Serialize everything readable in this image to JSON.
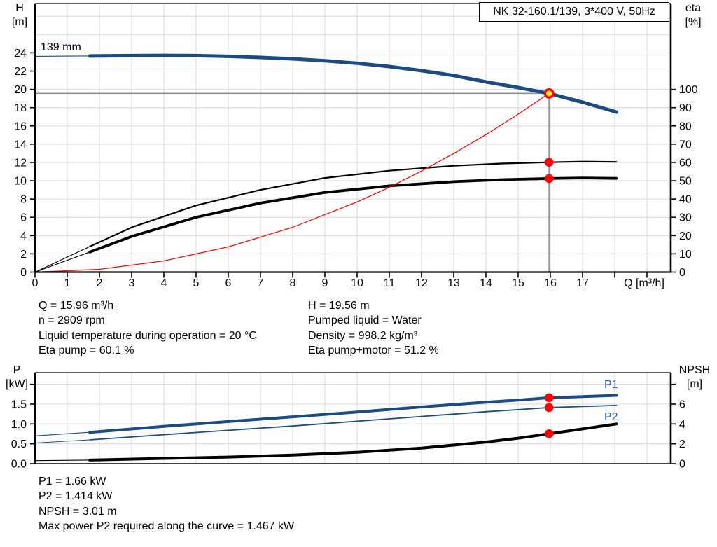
{
  "title": "NK 32-160.1/139, 3*400 V, 50Hz",
  "axis_labels": {
    "h": [
      "H",
      "[m]"
    ],
    "eta": [
      "eta",
      "[%]"
    ],
    "q": "Q [m³/h]",
    "p": [
      "P",
      "[kW]"
    ],
    "npsh": [
      "NPSH",
      "[m]"
    ]
  },
  "curve_labels": {
    "impeller": "139 mm",
    "p1": "P1",
    "p2": "P2"
  },
  "info_top": {
    "left": [
      "Q = 15.96 m³/h",
      "n = 2909 rpm",
      "Liquid temperature during operation = 20 °C",
      "Eta pump = 60.1 %"
    ],
    "right": [
      "H = 19.56 m",
      "Pumped liquid = Water",
      "Density = 998.2 kg/m³",
      "Eta pump+motor = 51.2 %"
    ]
  },
  "info_bottom": [
    "P1 = 1.66 kW",
    "P2 = 1.414 kW",
    "NPSH = 3.01 m",
    "Max power P2 required along the curve = 1.467 kW"
  ],
  "colors": {
    "curve_blue": "#1c4b82",
    "label_blue": "#2e5fa3",
    "red": "#ff0000",
    "yellow": "#ffe600",
    "grid": "#d8d8d8",
    "guide": "#8f8f8f",
    "axis": "#000000"
  },
  "chart_data": [
    {
      "type": "line",
      "name": "qh-eta-chart",
      "title": "NK 32-160.1/139, 3*400 V, 50Hz",
      "x_axis": {
        "label": "Q [m³/h]",
        "min": 0,
        "max": 19.74,
        "tick_labels": [
          "0",
          "1",
          "2",
          "3",
          "4",
          "5",
          "6",
          "7",
          "8",
          "9",
          "10",
          "11",
          "12",
          "13",
          "14",
          "15",
          "16",
          "17"
        ],
        "ticks": [
          0,
          1,
          2,
          3,
          4,
          5,
          6,
          7,
          8,
          9,
          10,
          11,
          12,
          13,
          14,
          15,
          16,
          17,
          18,
          19
        ]
      },
      "x_gridlines": [
        1,
        2,
        3,
        4,
        5,
        6,
        7,
        8,
        9,
        10,
        11,
        12,
        13,
        14,
        15,
        16,
        17,
        18,
        19
      ],
      "y_left": {
        "label": "H [m]",
        "min": 0,
        "max": 29.4,
        "tick_values": [
          0,
          2,
          4,
          6,
          8,
          10,
          12,
          14,
          16,
          18,
          20,
          22,
          24
        ],
        "tick_labels": [
          "0",
          "2",
          "4",
          "6",
          "8",
          "10",
          "12",
          "14",
          "16",
          "18",
          "20",
          "22",
          "24"
        ],
        "extra_ticks": []
      },
      "y_gridlines": [
        2,
        4,
        6,
        8,
        10,
        12,
        14,
        16,
        18,
        20,
        22,
        24,
        26,
        28
      ],
      "y_right": {
        "label": "eta [%]",
        "min": 0,
        "max": 147,
        "tick_values": [
          0,
          10,
          20,
          30,
          40,
          50,
          60,
          70,
          80,
          90,
          100
        ],
        "tick_labels": [
          "0",
          "10",
          "20",
          "30",
          "40",
          "50",
          "60",
          "70",
          "80",
          "90",
          "100"
        ],
        "extra_ticks": []
      },
      "series": [
        {
          "name": "head-curve-139mm",
          "label": "139 mm",
          "axis": "left",
          "color": "curve_blue",
          "width": 5,
          "thin_until": 1.7,
          "q": [
            0,
            1,
            1.7,
            3,
            4,
            5,
            6,
            7,
            8,
            9,
            10,
            11,
            12,
            13,
            14,
            15,
            15.96,
            17,
            18.05
          ],
          "v": [
            23.62,
            23.64,
            23.66,
            23.7,
            23.72,
            23.7,
            23.62,
            23.5,
            23.34,
            23.14,
            22.86,
            22.5,
            22.05,
            21.52,
            20.82,
            20.2,
            19.56,
            18.6,
            17.52
          ]
        },
        {
          "name": "eta-pump-curve",
          "axis": "right",
          "color": "axis",
          "width": 2.2,
          "thin_until": 1.7,
          "q": [
            0,
            1.7,
            3,
            5,
            7,
            9,
            11,
            13,
            14.5,
            15.96,
            17,
            18.05
          ],
          "v": [
            0,
            14,
            24.5,
            36.5,
            45,
            51.5,
            55.5,
            58.2,
            59.4,
            60.1,
            60.5,
            60.3
          ]
        },
        {
          "name": "eta-pump-motor-curve",
          "axis": "right",
          "color": "axis",
          "width": 3.8,
          "thin_until": 1.7,
          "q": [
            0,
            1.7,
            3,
            5,
            7,
            9,
            11,
            13,
            14.5,
            15.96,
            17,
            18.05
          ],
          "v": [
            0,
            11,
            19.5,
            30,
            37.8,
            43.6,
            47.2,
            49.5,
            50.6,
            51.2,
            51.5,
            51.3
          ]
        },
        {
          "name": "system-curve",
          "axis": "left",
          "color": "red",
          "width": 1.2,
          "q": [
            0,
            2,
            4,
            6,
            8,
            10,
            11,
            12,
            13,
            14,
            15,
            15.96
          ],
          "v": [
            0,
            0.31,
            1.23,
            2.76,
            4.91,
            7.68,
            9.29,
            11.06,
            12.98,
            15.05,
            17.28,
            19.56
          ]
        }
      ],
      "duty_point": {
        "q": 15.96,
        "h": 19.56
      },
      "markers": [
        {
          "name": "eta-pump-duty-dot",
          "axis": "right",
          "q": 15.96,
          "v": 60.1
        },
        {
          "name": "eta-pump-motor-duty-dot",
          "axis": "right",
          "q": 15.96,
          "v": 51.2
        }
      ]
    },
    {
      "type": "line",
      "name": "power-npsh-chart",
      "x_axis": {
        "label": "",
        "min": 0,
        "max": 19.74,
        "tick_labels": [],
        "ticks": []
      },
      "x_gridlines": [
        1,
        2,
        3,
        4,
        5,
        6,
        7,
        8,
        9,
        10,
        11,
        12,
        13,
        14,
        15,
        16,
        17,
        18,
        19
      ],
      "y_left": {
        "label": "P [kW]",
        "min": 0,
        "max": 2.294,
        "tick_values": [
          0,
          0.5,
          1,
          1.5
        ],
        "tick_labels": [
          "0.0",
          "0.5",
          "1.0",
          "1.5"
        ],
        "extra_ticks": [
          2
        ]
      },
      "y_gridlines": [
        0.5,
        1,
        1.5,
        2
      ],
      "y_right": {
        "label": "NPSH [m]",
        "min": 0,
        "max": 9.176,
        "tick_values": [
          0,
          2,
          4,
          6
        ],
        "tick_labels": [
          "0",
          "2",
          "4",
          "6"
        ],
        "extra_ticks": [
          8
        ]
      },
      "series": [
        {
          "name": "p1-curve",
          "label": "P1",
          "axis": "left",
          "color": "curve_blue",
          "width": 4,
          "thin_until": 1.7,
          "q": [
            0,
            1.7,
            4,
            6,
            8,
            10,
            12,
            14,
            15,
            15.96,
            17,
            18.05
          ],
          "v": [
            0.7,
            0.79,
            0.94,
            1.06,
            1.18,
            1.3,
            1.43,
            1.55,
            1.6,
            1.66,
            1.69,
            1.72
          ]
        },
        {
          "name": "p2-curve",
          "label": "P2",
          "axis": "left",
          "color": "curve_blue",
          "width": 1.8,
          "thin_until": 1.7,
          "q": [
            0,
            1.7,
            4,
            6,
            8,
            10,
            12,
            14,
            15,
            15.96,
            17,
            18.05
          ],
          "v": [
            0.52,
            0.6,
            0.73,
            0.84,
            0.95,
            1.07,
            1.19,
            1.31,
            1.36,
            1.414,
            1.44,
            1.467
          ]
        },
        {
          "name": "npsh-curve",
          "axis": "right",
          "color": "axis",
          "width": 4,
          "thin_until": 1.7,
          "q": [
            0,
            1.7,
            4,
            6,
            8,
            10,
            12,
            14,
            15,
            15.96,
            17,
            18.05
          ],
          "v": [
            0.3,
            0.36,
            0.53,
            0.66,
            0.86,
            1.15,
            1.57,
            2.18,
            2.57,
            3.01,
            3.5,
            4.0
          ]
        }
      ],
      "markers": [
        {
          "name": "p1-duty-dot",
          "axis": "left",
          "q": 15.96,
          "v": 1.66
        },
        {
          "name": "p2-duty-dot",
          "axis": "left",
          "q": 15.96,
          "v": 1.414
        },
        {
          "name": "npsh-duty-dot",
          "axis": "right",
          "q": 15.96,
          "v": 3.01
        }
      ]
    }
  ]
}
